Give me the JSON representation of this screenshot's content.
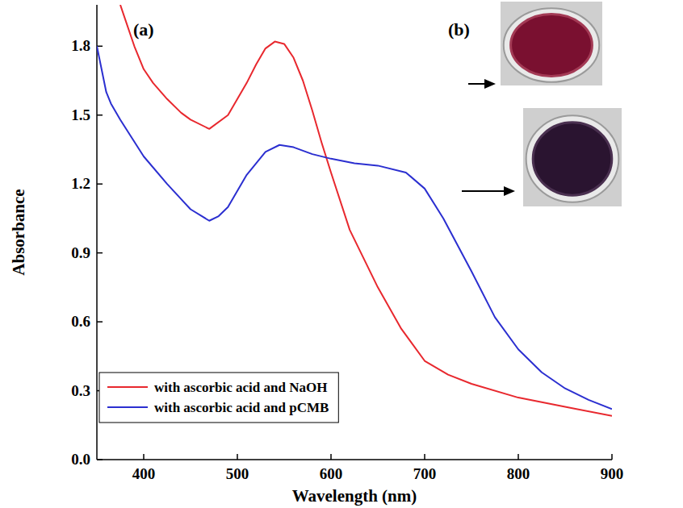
{
  "chart_data": {
    "type": "line",
    "panel_labels": [
      "(a)",
      "(b)"
    ],
    "x_label": "Wavelength (nm)",
    "y_label": "Absorbance",
    "xlim": [
      350,
      900
    ],
    "ylim": [
      0,
      1.98
    ],
    "xticks": [
      400,
      500,
      600,
      700,
      800,
      900
    ],
    "yticks": [
      {
        "value": 0,
        "label": "0.0"
      },
      0.3,
      0.6,
      0.9,
      1.2,
      1.5,
      1.8
    ],
    "grid": false,
    "legend": "lower left",
    "series": [
      {
        "name": "with ascorbic acid and NaOH",
        "color": "#e8282e",
        "x": [
          375,
          380,
          390,
          400,
          410,
          425,
          440,
          450,
          470,
          490,
          500,
          510,
          520,
          530,
          540,
          550,
          560,
          570,
          580,
          590,
          600,
          620,
          650,
          675,
          700,
          725,
          750,
          800,
          850,
          900
        ],
        "values": [
          1.98,
          1.92,
          1.8,
          1.7,
          1.64,
          1.57,
          1.51,
          1.48,
          1.44,
          1.5,
          1.57,
          1.64,
          1.72,
          1.79,
          1.82,
          1.81,
          1.75,
          1.65,
          1.52,
          1.38,
          1.25,
          1.0,
          0.75,
          0.57,
          0.43,
          0.37,
          0.33,
          0.27,
          0.23,
          0.19
        ]
      },
      {
        "name": "with ascorbic acid and pCMB",
        "color": "#2b2fd0",
        "x": [
          350,
          355,
          360,
          365,
          375,
          400,
          425,
          450,
          470,
          480,
          490,
          510,
          530,
          545,
          560,
          580,
          600,
          625,
          650,
          680,
          700,
          720,
          750,
          775,
          800,
          825,
          850,
          875,
          900
        ],
        "values": [
          1.8,
          1.7,
          1.6,
          1.55,
          1.48,
          1.32,
          1.2,
          1.09,
          1.04,
          1.06,
          1.1,
          1.24,
          1.34,
          1.37,
          1.36,
          1.33,
          1.31,
          1.29,
          1.28,
          1.25,
          1.18,
          1.05,
          0.82,
          0.62,
          0.48,
          0.38,
          0.31,
          0.26,
          0.22
        ]
      }
    ]
  }
}
